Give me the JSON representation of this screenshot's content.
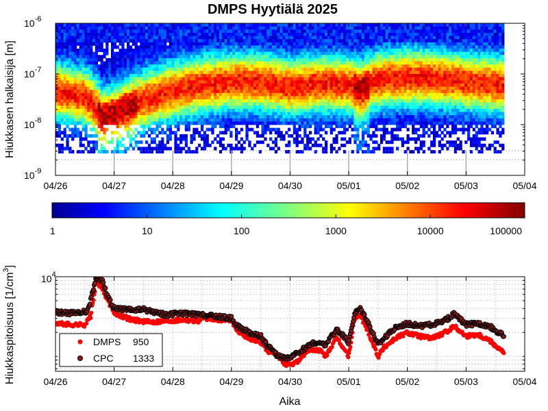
{
  "chart_data": [
    {
      "type": "heatmap",
      "title": "DMPS Hyytiälä 2025",
      "ylabel": "Hiukkasen halkaisija [m]",
      "y_scale": "log",
      "ylim": [
        1e-09,
        1e-06
      ],
      "y_ticks": [
        {
          "value": 1e-09,
          "base": "10",
          "exp": "-9"
        },
        {
          "value": 1e-08,
          "base": "10",
          "exp": "-8"
        },
        {
          "value": 1e-07,
          "base": "10",
          "exp": "-7"
        },
        {
          "value": 1e-06,
          "base": "10",
          "exp": "-6"
        }
      ],
      "x_ticks": [
        "04/26",
        "04/27",
        "04/28",
        "04/29",
        "04/30",
        "05/01",
        "05/02",
        "05/03",
        "05/04"
      ],
      "data_end_day": 7.65,
      "colormap": "jet",
      "colorbar": {
        "scale": "log",
        "range": [
          1,
          100000
        ],
        "ticks": [
          "1",
          "10",
          "100",
          "1000",
          "10000",
          "100000"
        ]
      },
      "mode_diameter_nm_by_day": [
        [
          0.0,
          45
        ],
        [
          0.5,
          35
        ],
        [
          0.8,
          14
        ],
        [
          1.0,
          16
        ],
        [
          1.5,
          30
        ],
        [
          2.0,
          45
        ],
        [
          2.5,
          60
        ],
        [
          3.0,
          70
        ],
        [
          3.5,
          70
        ],
        [
          4.0,
          55
        ],
        [
          4.5,
          65
        ],
        [
          5.0,
          60
        ],
        [
          5.2,
          50
        ],
        [
          5.5,
          75
        ],
        [
          6.0,
          85
        ],
        [
          6.5,
          80
        ],
        [
          7.0,
          70
        ],
        [
          7.65,
          60
        ]
      ]
    },
    {
      "type": "scatter",
      "xlabel": "Aika",
      "ylabel": "Hiukkaspitoisuus [1/cm",
      "ylabel_superscript": "3",
      "ylabel_suffix": "]",
      "y_scale": "log",
      "y_tick_label": {
        "base": "10",
        "exp": "4"
      },
      "x_ticks": [
        "04/26",
        "04/27",
        "04/28",
        "04/29",
        "04/30",
        "05/01",
        "05/02",
        "05/03",
        "05/04"
      ],
      "legend_position": "bottom-left",
      "series": [
        {
          "name": "DMPS",
          "legend_value": "950",
          "color": "#ff0000",
          "points": [
            [
              0.0,
              2600
            ],
            [
              0.25,
              2500
            ],
            [
              0.5,
              2500
            ],
            [
              0.6,
              3200
            ],
            [
              0.7,
              9000
            ],
            [
              0.8,
              7000
            ],
            [
              1.0,
              3500
            ],
            [
              1.3,
              2900
            ],
            [
              1.6,
              2700
            ],
            [
              1.9,
              2800
            ],
            [
              2.2,
              2900
            ],
            [
              2.45,
              2800
            ],
            [
              2.5,
              3100
            ],
            [
              2.7,
              2900
            ],
            [
              3.0,
              2900
            ],
            [
              3.1,
              2100
            ],
            [
              3.3,
              1700
            ],
            [
              3.5,
              1500
            ],
            [
              3.6,
              1200
            ],
            [
              3.8,
              1000
            ],
            [
              3.9,
              820
            ],
            [
              4.0,
              760
            ],
            [
              4.15,
              900
            ],
            [
              4.3,
              1200
            ],
            [
              4.5,
              1200
            ],
            [
              4.6,
              1000
            ],
            [
              4.8,
              1700
            ],
            [
              5.0,
              1000
            ],
            [
              5.1,
              3000
            ],
            [
              5.2,
              3300
            ],
            [
              5.35,
              1900
            ],
            [
              5.5,
              1000
            ],
            [
              5.6,
              1300
            ],
            [
              5.8,
              1700
            ],
            [
              6.0,
              2000
            ],
            [
              6.2,
              1800
            ],
            [
              6.4,
              1700
            ],
            [
              6.6,
              1900
            ],
            [
              6.8,
              2400
            ],
            [
              7.0,
              1800
            ],
            [
              7.2,
              1900
            ],
            [
              7.4,
              1600
            ],
            [
              7.65,
              1100
            ]
          ]
        },
        {
          "name": "CPC",
          "legend_value": "1333",
          "color": "#000000",
          "marker_fill": "#8b1a1a",
          "points": [
            [
              0.0,
              3600
            ],
            [
              0.2,
              3500
            ],
            [
              0.4,
              3500
            ],
            [
              0.55,
              3700
            ],
            [
              0.7,
              10000
            ],
            [
              0.8,
              9000
            ],
            [
              0.9,
              5500
            ],
            [
              1.0,
              4000
            ],
            [
              1.3,
              3800
            ],
            [
              1.5,
              3900
            ],
            [
              1.7,
              3600
            ],
            [
              1.9,
              3300
            ],
            [
              2.1,
              3500
            ],
            [
              2.3,
              3400
            ],
            [
              2.5,
              3300
            ],
            [
              2.7,
              3200
            ],
            [
              3.0,
              3000
            ],
            [
              3.1,
              2400
            ],
            [
              3.3,
              2000
            ],
            [
              3.5,
              1800
            ],
            [
              3.6,
              1400
            ],
            [
              3.8,
              1000
            ],
            [
              4.0,
              950
            ],
            [
              4.2,
              1200
            ],
            [
              4.4,
              1500
            ],
            [
              4.6,
              1400
            ],
            [
              4.8,
              2200
            ],
            [
              5.0,
              1500
            ],
            [
              5.1,
              3500
            ],
            [
              5.2,
              4000
            ],
            [
              5.3,
              3000
            ],
            [
              5.5,
              1400
            ],
            [
              5.6,
              1700
            ],
            [
              5.8,
              2300
            ],
            [
              6.0,
              2600
            ],
            [
              6.2,
              2400
            ],
            [
              6.4,
              2500
            ],
            [
              6.6,
              2700
            ],
            [
              6.8,
              3400
            ],
            [
              7.0,
              2500
            ],
            [
              7.2,
              2600
            ],
            [
              7.4,
              2400
            ],
            [
              7.65,
              1800
            ]
          ]
        }
      ]
    }
  ]
}
